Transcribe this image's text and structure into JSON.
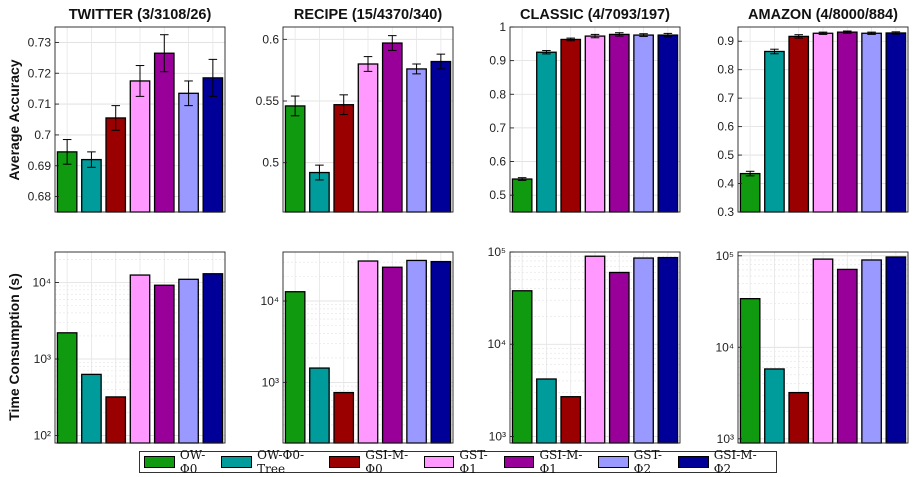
{
  "series": [
    {
      "name": "OW-Φ0",
      "color": "#0f9a0f"
    },
    {
      "name": "OW-Φ0-Tree",
      "color": "#009b9b"
    },
    {
      "name": "GSI-M-Φ0",
      "color": "#9b0000"
    },
    {
      "name": "GST-Φ1",
      "color": "#ff99ff"
    },
    {
      "name": "GSI-M-Φ1",
      "color": "#990099"
    },
    {
      "name": "GST-Φ2",
      "color": "#9999ff"
    },
    {
      "name": "GSI-M-Φ2",
      "color": "#000099"
    }
  ],
  "row_labels": {
    "accuracy": "Average Accuracy",
    "time": "Time Consumption (s)"
  },
  "chart_data": [
    {
      "type": "bar",
      "title": "TWITTER (3/3108/26)",
      "ylabel": "Average Accuracy",
      "scale": "linear",
      "ylim": [
        0.675,
        0.735
      ],
      "yticks": [
        0.68,
        0.69,
        0.7,
        0.71,
        0.72,
        0.73
      ],
      "ytick_labels": [
        "0.68",
        "0.69",
        "0.7",
        "0.71",
        "0.72",
        "0.73"
      ],
      "values": [
        0.6945,
        0.692,
        0.7055,
        0.7175,
        0.7265,
        0.7135,
        0.7185
      ],
      "errors": [
        0.004,
        0.0025,
        0.004,
        0.005,
        0.006,
        0.004,
        0.006
      ]
    },
    {
      "type": "bar",
      "title": "RECIPE (15/4370/340)",
      "ylabel": "",
      "scale": "linear",
      "ylim": [
        0.46,
        0.61
      ],
      "yticks": [
        0.5,
        0.55,
        0.6
      ],
      "ytick_labels": [
        "0.5",
        "0.55",
        "0.6"
      ],
      "values": [
        0.546,
        0.492,
        0.547,
        0.58,
        0.597,
        0.576,
        0.582
      ],
      "errors": [
        0.008,
        0.006,
        0.008,
        0.006,
        0.006,
        0.004,
        0.006
      ]
    },
    {
      "type": "bar",
      "title": "CLASSIC (4/7093/197)",
      "ylabel": "",
      "scale": "linear",
      "ylim": [
        0.45,
        1.0
      ],
      "yticks": [
        0.5,
        0.6,
        0.7,
        0.8,
        0.9,
        1.0
      ],
      "ytick_labels": [
        "0.5",
        "0.6",
        "0.7",
        "0.8",
        "0.9",
        "1"
      ],
      "values": [
        0.548,
        0.925,
        0.963,
        0.973,
        0.978,
        0.976,
        0.976
      ],
      "errors": [
        0.004,
        0.005,
        0.004,
        0.005,
        0.005,
        0.004,
        0.005
      ]
    },
    {
      "type": "bar",
      "title": "AMAZON (4/8000/884)",
      "ylabel": "",
      "scale": "linear",
      "ylim": [
        0.3,
        0.95
      ],
      "yticks": [
        0.3,
        0.4,
        0.5,
        0.6,
        0.7,
        0.8,
        0.9
      ],
      "ytick_labels": [
        "0.3",
        "0.4",
        "0.5",
        "0.6",
        "0.7",
        "0.8",
        "0.9"
      ],
      "values": [
        0.435,
        0.864,
        0.917,
        0.928,
        0.932,
        0.928,
        0.929
      ],
      "errors": [
        0.008,
        0.008,
        0.006,
        0.004,
        0.004,
        0.004,
        0.004
      ]
    },
    {
      "type": "bar",
      "title": "",
      "ylabel": "Time Consumption (s)",
      "scale": "log",
      "ylim": [
        80,
        25000
      ],
      "yticks": [
        100,
        1000,
        10000
      ],
      "ytick_labels": [
        "10²",
        "10³",
        "10⁴"
      ],
      "values": [
        2200,
        630,
        320,
        12500,
        9200,
        11000,
        13000
      ],
      "errors": null
    },
    {
      "type": "bar",
      "title": "",
      "ylabel": "",
      "scale": "log",
      "ylim": [
        180,
        40000
      ],
      "yticks": [
        1000,
        10000
      ],
      "ytick_labels": [
        "10³",
        "10⁴"
      ],
      "values": [
        13000,
        1500,
        750,
        31000,
        26000,
        31500,
        30500
      ],
      "errors": null
    },
    {
      "type": "bar",
      "title": "",
      "ylabel": "",
      "scale": "log",
      "ylim": [
        850,
        100000
      ],
      "yticks": [
        1000,
        10000,
        100000
      ],
      "ytick_labels": [
        "10³",
        "10⁴",
        "10⁵"
      ],
      "values": [
        38000,
        4200,
        2700,
        90000,
        60000,
        86000,
        87000
      ],
      "errors": null
    },
    {
      "type": "bar",
      "title": "",
      "ylabel": "",
      "scale": "log",
      "ylim": [
        900,
        110000
      ],
      "yticks": [
        1000,
        10000,
        100000
      ],
      "ytick_labels": [
        "10³",
        "10⁴",
        "10⁵"
      ],
      "values": [
        34000,
        5800,
        3200,
        92000,
        71000,
        90000,
        97000
      ],
      "errors": null
    }
  ]
}
